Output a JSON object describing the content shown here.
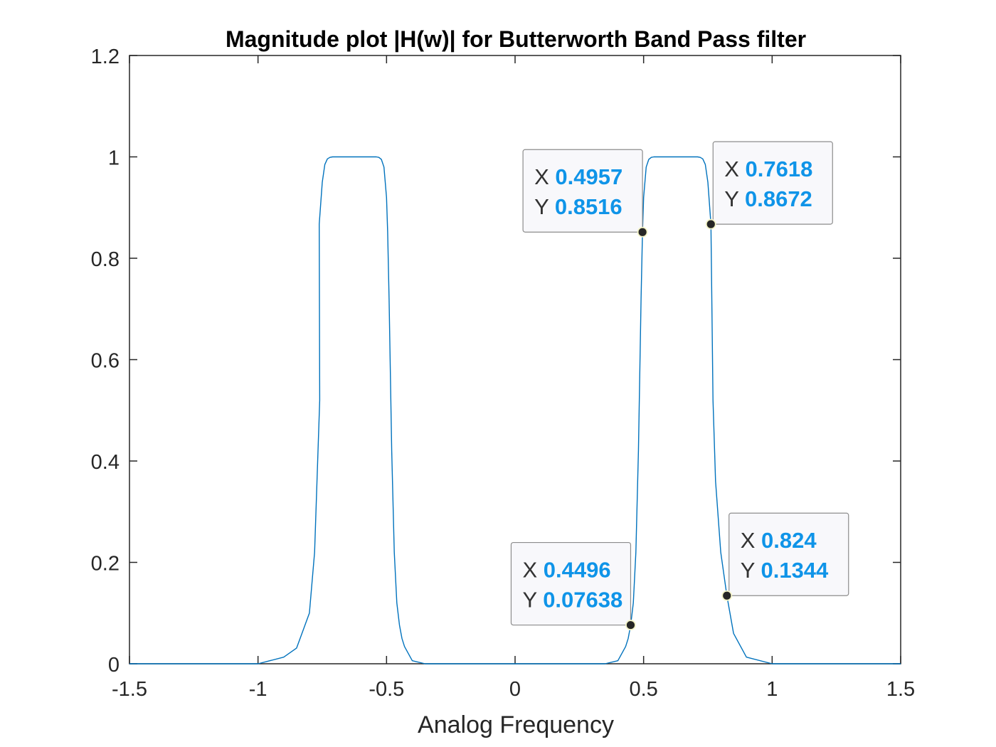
{
  "chart_data": {
    "type": "line",
    "title": "Magnitude plot |H(w)| for Butterworth Band Pass filter",
    "xlabel": "Analog Frequency",
    "ylabel": "",
    "xlim": [
      -1.5,
      1.5
    ],
    "ylim": [
      0,
      1.2
    ],
    "xticks": [
      "-1.5",
      "-1",
      "-0.5",
      "0",
      "0.5",
      "1",
      "1.5"
    ],
    "yticks": [
      "0",
      "0.2",
      "0.4",
      "0.6",
      "0.8",
      "1",
      "1.2"
    ],
    "grid": false,
    "line_color": "#0072bd",
    "datatip_value_color": "#0f94e8",
    "passband": {
      "lower_edge": 0.49,
      "upper_edge": 0.76,
      "peak": 1
    },
    "series": [
      {
        "x": [
          -1.5,
          -1.0,
          -0.9,
          -0.85,
          -0.8,
          -0.78,
          -0.76,
          -0.7618,
          -0.75,
          -0.74,
          -0.73,
          -0.72,
          -0.71,
          -0.7,
          -0.65,
          -0.6,
          -0.55,
          -0.54,
          -0.53,
          -0.52,
          -0.51,
          -0.5,
          -0.4957,
          -0.49,
          -0.48,
          -0.47,
          -0.46,
          -0.4496,
          -0.44,
          -0.43,
          -0.4,
          -0.35,
          0.0,
          0.35,
          0.4,
          0.43,
          0.44,
          0.4496,
          0.46,
          0.47,
          0.48,
          0.49,
          0.4957,
          0.5,
          0.51,
          0.52,
          0.53,
          0.54,
          0.55,
          0.6,
          0.65,
          0.7,
          0.71,
          0.72,
          0.73,
          0.74,
          0.75,
          0.7618,
          0.77,
          0.78,
          0.8,
          0.824,
          0.85,
          0.9,
          1.0,
          1.5
        ],
        "y": [
          0,
          0,
          0.013,
          0.031,
          0.1,
          0.22,
          0.52,
          0.8672,
          0.95,
          0.985,
          0.996,
          0.999,
          1,
          1,
          1,
          1,
          1,
          1,
          0.999,
          0.995,
          0.98,
          0.92,
          0.8516,
          0.72,
          0.42,
          0.22,
          0.12,
          0.07638,
          0.05,
          0.034,
          0.006,
          0,
          0,
          0,
          0.006,
          0.034,
          0.05,
          0.07638,
          0.12,
          0.22,
          0.42,
          0.72,
          0.8516,
          0.92,
          0.98,
          0.995,
          0.999,
          1,
          1,
          1,
          1,
          1,
          1,
          0.999,
          0.996,
          0.985,
          0.95,
          0.8672,
          0.52,
          0.36,
          0.22,
          0.1344,
          0.06,
          0.013,
          0,
          0
        ]
      }
    ],
    "datatips": [
      {
        "x": 0.4957,
        "y": 0.8516,
        "x_text": "0.4957",
        "y_text": "0.8516",
        "placement": "upper-left"
      },
      {
        "x": 0.7618,
        "y": 0.8672,
        "x_text": "0.7618",
        "y_text": "0.8672",
        "placement": "upper-right"
      },
      {
        "x": 0.4496,
        "y": 0.07638,
        "x_text": "0.4496",
        "y_text": "0.07638",
        "placement": "upper-left"
      },
      {
        "x": 0.824,
        "y": 0.1344,
        "x_text": "0.824",
        "y_text": "0.1344",
        "placement": "upper-right"
      }
    ]
  }
}
